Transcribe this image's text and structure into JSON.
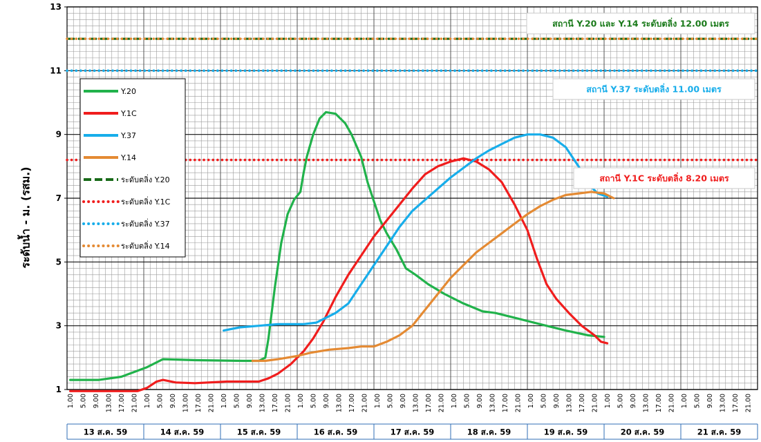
{
  "chart_data": {
    "type": "line",
    "ylabel": "ระดับน้ำ  -  ม. (รสม.)",
    "ylim": [
      1,
      13
    ],
    "yticks": [
      1,
      3,
      5,
      7,
      9,
      11,
      13
    ],
    "x_unit": "hour of 13–21 Aug 2016, 00:00 of 13 ส.ค. 59 = 0",
    "xlim": [
      0,
      216
    ],
    "hour_labels": [
      "1.00",
      "5.00",
      "9.00",
      "13.00",
      "17.00",
      "21.00"
    ],
    "days": [
      "13 ส.ค. 59",
      "14 ส.ค. 59",
      "15  ส.ค. 59",
      "16 ส.ค. 59",
      "17  ส.ค. 59",
      "18 ส.ค. 59",
      "19 ส.ค. 59",
      "20 ส.ค. 59",
      "21 ส.ค. 59"
    ],
    "series": [
      {
        "name": "Y.20",
        "color": "#21b24b",
        "points": [
          [
            1,
            1.3
          ],
          [
            10,
            1.3
          ],
          [
            17,
            1.4
          ],
          [
            25,
            1.7
          ],
          [
            30,
            1.95
          ],
          [
            40,
            1.92
          ],
          [
            55,
            1.9
          ],
          [
            60,
            1.9
          ],
          [
            62,
            2.0
          ],
          [
            63,
            2.6
          ],
          [
            65,
            4.2
          ],
          [
            67,
            5.6
          ],
          [
            69,
            6.5
          ],
          [
            71,
            6.95
          ],
          [
            73,
            7.2
          ],
          [
            74,
            7.8
          ],
          [
            75,
            8.3
          ],
          [
            77,
            9.0
          ],
          [
            79,
            9.5
          ],
          [
            81,
            9.7
          ],
          [
            84,
            9.65
          ],
          [
            87,
            9.35
          ],
          [
            89,
            9.0
          ],
          [
            92,
            8.3
          ],
          [
            94,
            7.5
          ],
          [
            96,
            6.9
          ],
          [
            98,
            6.3
          ],
          [
            100,
            5.9
          ],
          [
            103,
            5.4
          ],
          [
            106,
            4.8
          ],
          [
            109,
            4.6
          ],
          [
            113,
            4.3
          ],
          [
            118,
            4.0
          ],
          [
            124,
            3.7
          ],
          [
            130,
            3.45
          ],
          [
            134,
            3.4
          ],
          [
            140,
            3.25
          ],
          [
            148,
            3.05
          ],
          [
            156,
            2.85
          ],
          [
            163,
            2.7
          ],
          [
            168,
            2.65
          ]
        ]
      },
      {
        "name": "Y.1C",
        "color": "#f01d1d",
        "points": [
          [
            1,
            0.95
          ],
          [
            22,
            0.95
          ],
          [
            25,
            1.05
          ],
          [
            28,
            1.25
          ],
          [
            30,
            1.3
          ],
          [
            34,
            1.22
          ],
          [
            40,
            1.2
          ],
          [
            50,
            1.25
          ],
          [
            60,
            1.25
          ],
          [
            63,
            1.35
          ],
          [
            66,
            1.5
          ],
          [
            70,
            1.8
          ],
          [
            74,
            2.2
          ],
          [
            77,
            2.6
          ],
          [
            80,
            3.1
          ],
          [
            84,
            3.9
          ],
          [
            88,
            4.6
          ],
          [
            92,
            5.2
          ],
          [
            96,
            5.8
          ],
          [
            100,
            6.3
          ],
          [
            104,
            6.8
          ],
          [
            108,
            7.3
          ],
          [
            112,
            7.75
          ],
          [
            116,
            8.0
          ],
          [
            120,
            8.15
          ],
          [
            124,
            8.25
          ],
          [
            128,
            8.15
          ],
          [
            132,
            7.9
          ],
          [
            136,
            7.5
          ],
          [
            140,
            6.8
          ],
          [
            144,
            6.0
          ],
          [
            147,
            5.1
          ],
          [
            150,
            4.3
          ],
          [
            153,
            3.85
          ],
          [
            157,
            3.4
          ],
          [
            161,
            3.0
          ],
          [
            165,
            2.7
          ],
          [
            167,
            2.5
          ],
          [
            169,
            2.45
          ]
        ]
      },
      {
        "name": "Y.37",
        "color": "#17adea",
        "points": [
          [
            49,
            2.85
          ],
          [
            54,
            2.95
          ],
          [
            60,
            3.0
          ],
          [
            66,
            3.05
          ],
          [
            74,
            3.05
          ],
          [
            78,
            3.1
          ],
          [
            84,
            3.4
          ],
          [
            88,
            3.7
          ],
          [
            92,
            4.3
          ],
          [
            96,
            4.9
          ],
          [
            100,
            5.5
          ],
          [
            104,
            6.1
          ],
          [
            108,
            6.6
          ],
          [
            112,
            6.95
          ],
          [
            116,
            7.3
          ],
          [
            120,
            7.65
          ],
          [
            124,
            7.95
          ],
          [
            128,
            8.25
          ],
          [
            132,
            8.5
          ],
          [
            136,
            8.7
          ],
          [
            140,
            8.9
          ],
          [
            144,
            9.0
          ],
          [
            148,
            9.0
          ],
          [
            152,
            8.9
          ],
          [
            156,
            8.6
          ],
          [
            160,
            8.0
          ],
          [
            163,
            7.45
          ],
          [
            166,
            7.15
          ],
          [
            169,
            7.05
          ]
        ]
      },
      {
        "name": "Y.14",
        "color": "#e48a33",
        "points": [
          [
            58,
            1.9
          ],
          [
            62,
            1.9
          ],
          [
            66,
            1.95
          ],
          [
            72,
            2.05
          ],
          [
            76,
            2.15
          ],
          [
            82,
            2.25
          ],
          [
            88,
            2.3
          ],
          [
            92,
            2.35
          ],
          [
            96,
            2.35
          ],
          [
            100,
            2.5
          ],
          [
            104,
            2.7
          ],
          [
            108,
            3.0
          ],
          [
            112,
            3.5
          ],
          [
            116,
            4.0
          ],
          [
            120,
            4.5
          ],
          [
            124,
            4.9
          ],
          [
            128,
            5.3
          ],
          [
            132,
            5.6
          ],
          [
            136,
            5.9
          ],
          [
            140,
            6.2
          ],
          [
            144,
            6.5
          ],
          [
            148,
            6.75
          ],
          [
            152,
            6.95
          ],
          [
            156,
            7.1
          ],
          [
            160,
            7.15
          ],
          [
            164,
            7.2
          ],
          [
            168,
            7.15
          ],
          [
            171,
            7.0
          ]
        ]
      }
    ],
    "thresholds": [
      {
        "name": "ระดับตลิ่ง Y.20",
        "value": 12.0,
        "color": "#1a6b1a",
        "style": "dashed"
      },
      {
        "name": "ระดับตลิ่ง Y.14",
        "value": 12.0,
        "color": "#e48a33",
        "style": "dotted"
      },
      {
        "name": "ระดับตลิ่ง Y.37",
        "value": 11.0,
        "color": "#17adea",
        "style": "dotted"
      },
      {
        "name": "ระดับตลิ่ง Y.1C",
        "value": 8.2,
        "color": "#f01d1d",
        "style": "dotted"
      }
    ],
    "legend": {
      "placement": "left",
      "entries": [
        {
          "label": "Y.20",
          "color": "#21b24b",
          "style": "solid"
        },
        {
          "label": "Y.1C",
          "color": "#f01d1d",
          "style": "solid"
        },
        {
          "label": "Y.37",
          "color": "#17adea",
          "style": "solid"
        },
        {
          "label": "Y.14",
          "color": "#e48a33",
          "style": "solid"
        },
        {
          "label": "ระดับตลิ่ง Y.20",
          "color": "#1a6b1a",
          "style": "dashed"
        },
        {
          "label": "ระดับตลิ่ง Y.1C",
          "color": "#f01d1d",
          "style": "dotted"
        },
        {
          "label": "ระดับตลิ่ง Y.37",
          "color": "#17adea",
          "style": "dotted"
        },
        {
          "label": "ระดับตลิ่ง Y.14",
          "color": "#e48a33",
          "style": "dotted"
        }
      ]
    },
    "annotations": [
      {
        "text": "สถานี Y.20 และ Y.14  ระดับตลิ่ง  12.00  เมตร",
        "color": "#1a7a1a"
      },
      {
        "text": "สถานี Y.37  ระดับตลิ่ง  11.00  เมตร",
        "color": "#17adea"
      },
      {
        "text": "สถานี Y.1C  ระดับตลิ่ง  8.20  เมตร",
        "color": "#f01d1d"
      }
    ]
  }
}
